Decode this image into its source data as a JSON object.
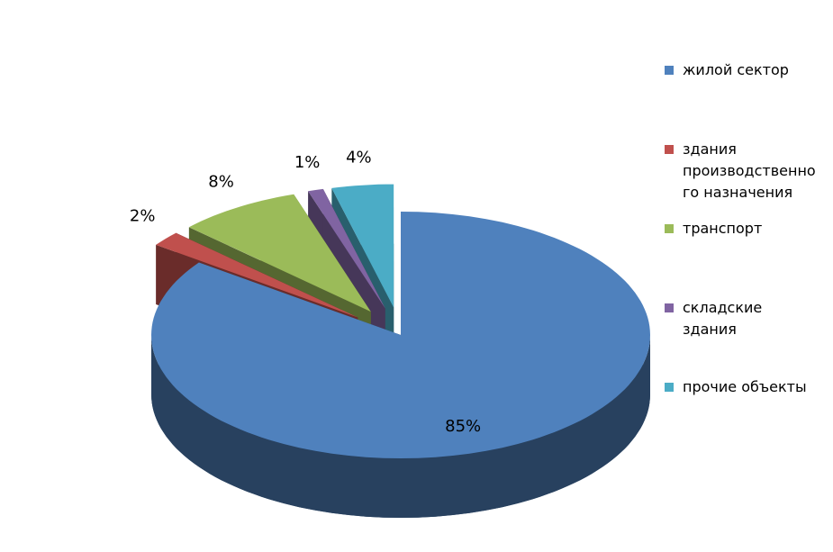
{
  "chart_data": {
    "type": "pie3d",
    "categories": [
      "жилой сектор",
      "здания производственного назначения",
      "транспорт",
      "складские здания",
      "прочие объекты"
    ],
    "values": [
      85,
      2,
      8,
      1,
      4
    ],
    "value_labels": [
      "85%",
      "2%",
      "8%",
      "1%",
      "4%"
    ],
    "colors": [
      "#4f81bd",
      "#c0504d",
      "#9bbb59",
      "#8064a2",
      "#4bacc6"
    ],
    "legend": "right"
  }
}
